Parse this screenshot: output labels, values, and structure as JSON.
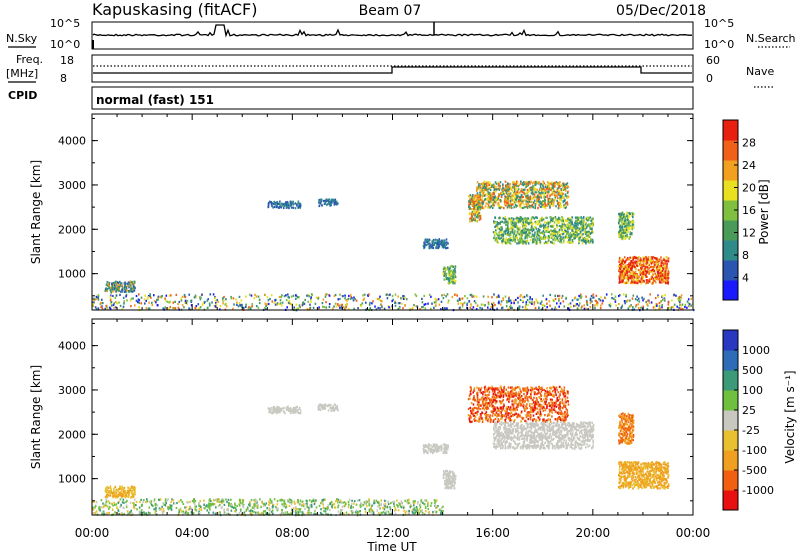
{
  "header": {
    "station": "Kapuskasing (fitACF)",
    "beam": "Beam 07",
    "date": "05/Dec/2018"
  },
  "noise_panel": {
    "left_label": "N.Sky",
    "right_label": "N.Search",
    "ticks_left": [
      "10^5",
      "10^0"
    ],
    "ticks_right": [
      "10^5",
      "10^0"
    ]
  },
  "freq_panel": {
    "left_label_1": "Freq.",
    "left_label_2": "[MHz]",
    "cpid_label": "CPID",
    "right_label": "Nave",
    "ticks_left": [
      "18",
      "8"
    ],
    "ticks_right": [
      "60",
      "0"
    ]
  },
  "cpid_text": "normal (fast) 151",
  "colors": {
    "power_scale": [
      "#1a1aff",
      "#2a55b0",
      "#2f8a8a",
      "#4a9a5a",
      "#80c040",
      "#e8e020",
      "#f2a020",
      "#f06018",
      "#e82010"
    ],
    "velocity_scale": [
      "#2838c0",
      "#2e6cb8",
      "#3c9a78",
      "#70c040",
      "#c8c8c0",
      "#e8c030",
      "#f0a020",
      "#f06010",
      "#e81010"
    ]
  },
  "chart_data": [
    {
      "type": "heatmap",
      "title": "",
      "xlabel": "",
      "ylabel": "Slant Range [km]",
      "colorbar_label": "Power [dB]",
      "colorbar_ticks": [
        "28",
        "24",
        "20",
        "16",
        "12",
        "8",
        "4"
      ],
      "y_ticks": [
        "4000",
        "3000",
        "2000",
        "1000"
      ],
      "ylim": [
        180,
        4600
      ],
      "xlim": [
        0,
        24
      ],
      "regions": [
        {
          "t0": 0.0,
          "t1": 24.0,
          "r0": 200,
          "r1": 560,
          "level": "mixed-low-power"
        },
        {
          "t0": 0.5,
          "t1": 1.7,
          "r0": 600,
          "r1": 850,
          "level": "blue-green"
        },
        {
          "t0": 7.0,
          "t1": 8.3,
          "r0": 2500,
          "r1": 2650,
          "level": "low"
        },
        {
          "t0": 9.0,
          "t1": 9.8,
          "r0": 2550,
          "r1": 2700,
          "level": "low"
        },
        {
          "t0": 13.2,
          "t1": 14.2,
          "r0": 1600,
          "r1": 1800,
          "level": "low"
        },
        {
          "t0": 14.0,
          "t1": 14.5,
          "r0": 800,
          "r1": 1200,
          "level": "medium"
        },
        {
          "t0": 15.0,
          "t1": 15.5,
          "r0": 2200,
          "r1": 2800,
          "level": "high"
        },
        {
          "t0": 15.3,
          "t1": 19.0,
          "r0": 2500,
          "r1": 3100,
          "level": "high"
        },
        {
          "t0": 16.0,
          "t1": 20.0,
          "r0": 1700,
          "r1": 2300,
          "level": "medium"
        },
        {
          "t0": 21.0,
          "t1": 21.6,
          "r0": 1800,
          "r1": 2400,
          "level": "medium"
        },
        {
          "t0": 21.0,
          "t1": 23.0,
          "r0": 800,
          "r1": 1400,
          "level": "very-high"
        }
      ]
    },
    {
      "type": "heatmap",
      "title": "",
      "xlabel": "Time UT",
      "ylabel": "Slant Range [km]",
      "colorbar_label": "Velocity [m s⁻¹]",
      "colorbar_ticks": [
        "1000",
        "500",
        "100",
        "25",
        "-25",
        "-100",
        "-500",
        "-1000"
      ],
      "y_ticks": [
        "4000",
        "3000",
        "2000",
        "1000"
      ],
      "x_ticks": [
        "00:00",
        "04:00",
        "08:00",
        "12:00",
        "16:00",
        "20:00",
        "00:00"
      ],
      "ylim": [
        180,
        4600
      ],
      "xlim": [
        0,
        24
      ],
      "regions": [
        {
          "t0": 0.0,
          "t1": 14.0,
          "r0": 200,
          "r1": 560,
          "level": "green-grey"
        },
        {
          "t0": 0.5,
          "t1": 1.7,
          "r0": 600,
          "r1": 850,
          "level": "yellow"
        },
        {
          "t0": 7.0,
          "t1": 8.3,
          "r0": 2500,
          "r1": 2650,
          "level": "grey"
        },
        {
          "t0": 9.0,
          "t1": 9.8,
          "r0": 2550,
          "r1": 2700,
          "level": "grey"
        },
        {
          "t0": 13.2,
          "t1": 14.2,
          "r0": 1600,
          "r1": 1800,
          "level": "grey"
        },
        {
          "t0": 14.0,
          "t1": 14.5,
          "r0": 800,
          "r1": 1200,
          "level": "grey"
        },
        {
          "t0": 15.0,
          "t1": 19.0,
          "r0": 2300,
          "r1": 3100,
          "level": "orange-red"
        },
        {
          "t0": 16.0,
          "t1": 20.0,
          "r0": 1700,
          "r1": 2300,
          "level": "grey"
        },
        {
          "t0": 21.0,
          "t1": 21.6,
          "r0": 1800,
          "r1": 2500,
          "level": "orange"
        },
        {
          "t0": 21.0,
          "t1": 23.0,
          "r0": 800,
          "r1": 1400,
          "level": "yellow-orange"
        }
      ]
    }
  ]
}
